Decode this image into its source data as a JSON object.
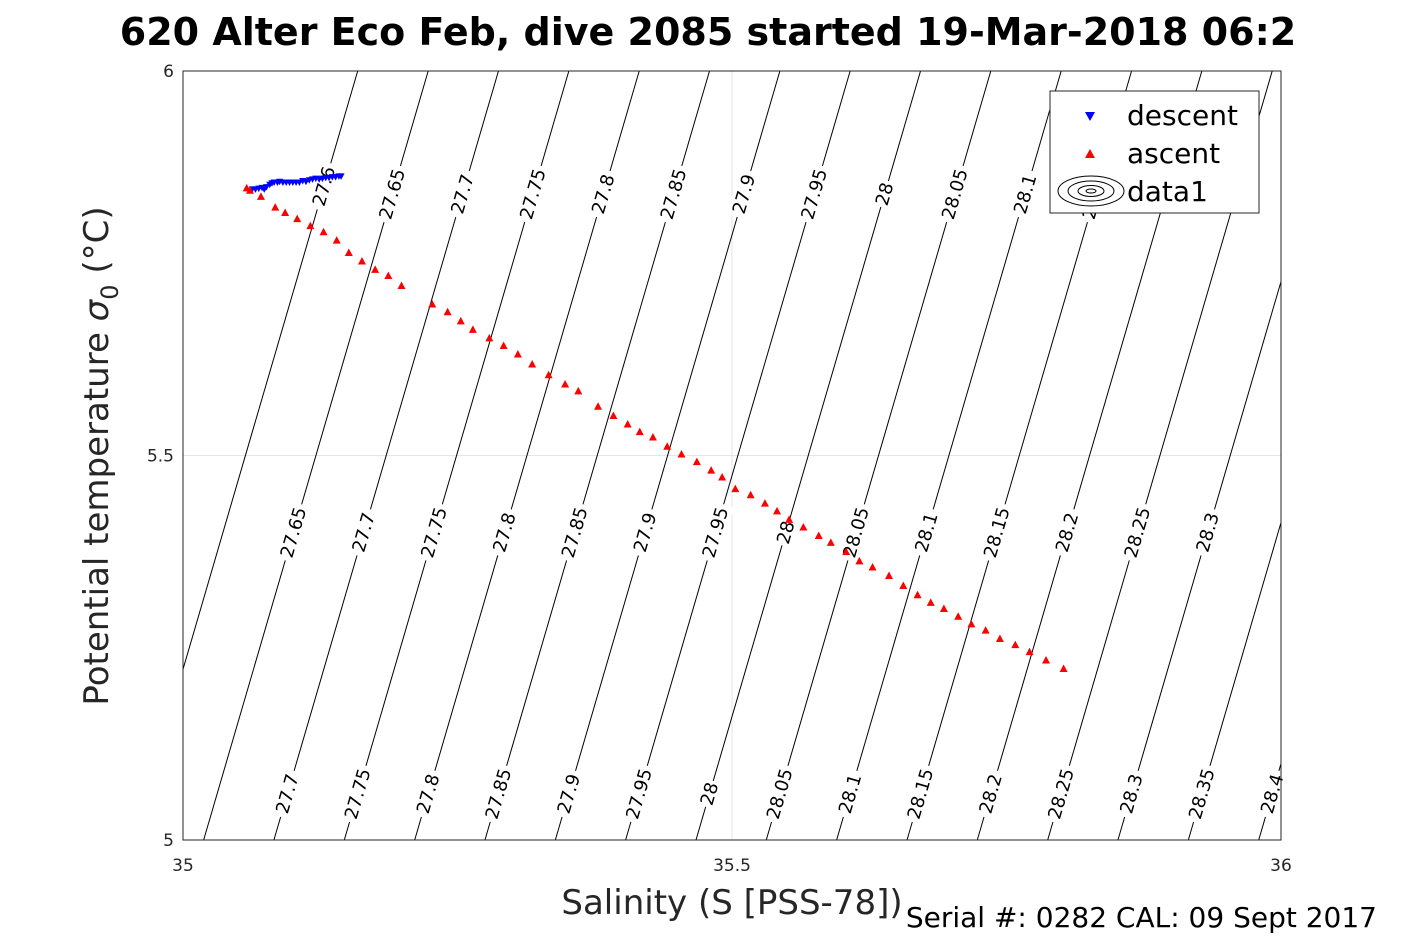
{
  "chart_data": {
    "type": "scatter",
    "title": "620 Alter Eco Feb, dive 2085 started 19-Mar-2018 06:2",
    "xlabel": "Salinity (S [PSS-78])",
    "ylabel_main": "Potential temperature ",
    "ylabel_symbol": "σ",
    "ylabel_sub": "0",
    "ylabel_unit": " (°C)",
    "xlim": [
      35,
      36
    ],
    "ylim": [
      5,
      6
    ],
    "x_ticks": [
      35,
      35.5,
      36
    ],
    "y_ticks": [
      5,
      5.5,
      6
    ],
    "x_tick_labels": [
      "35",
      "35.5",
      "36"
    ],
    "y_tick_labels": [
      "5",
      "5.5",
      "6"
    ],
    "grid": true,
    "legend_position": "top-right",
    "legend": [
      {
        "label": "descent",
        "marker": "triangle-down",
        "color": "#0000ff"
      },
      {
        "label": "ascent",
        "marker": "triangle-up",
        "color": "#ff0000"
      },
      {
        "label": "data1",
        "marker": "contour",
        "color": "#000000"
      }
    ],
    "series": [
      {
        "name": "descent",
        "color": "#0000ff",
        "marker": "triangle-down",
        "points": [
          [
            35.063,
            5.846
          ],
          [
            35.066,
            5.846
          ],
          [
            35.069,
            5.847
          ],
          [
            35.072,
            5.848
          ],
          [
            35.074,
            5.846
          ],
          [
            35.076,
            5.849
          ],
          [
            35.079,
            5.852
          ],
          [
            35.081,
            5.854
          ],
          [
            35.083,
            5.855
          ],
          [
            35.086,
            5.855
          ],
          [
            35.088,
            5.856
          ],
          [
            35.091,
            5.855
          ],
          [
            35.094,
            5.855
          ],
          [
            35.097,
            5.855
          ],
          [
            35.1,
            5.855
          ],
          [
            35.103,
            5.855
          ],
          [
            35.106,
            5.855
          ],
          [
            35.109,
            5.857
          ],
          [
            35.112,
            5.856
          ],
          [
            35.115,
            5.858
          ],
          [
            35.118,
            5.859
          ],
          [
            35.121,
            5.86
          ],
          [
            35.124,
            5.859
          ],
          [
            35.127,
            5.86
          ],
          [
            35.13,
            5.861
          ],
          [
            35.133,
            5.861
          ],
          [
            35.136,
            5.862
          ],
          [
            35.139,
            5.862
          ],
          [
            35.142,
            5.863
          ],
          [
            35.144,
            5.863
          ]
        ]
      },
      {
        "name": "ascent",
        "color": "#ff0000",
        "marker": "triangle-up",
        "points": [
          [
            35.058,
            5.848
          ],
          [
            35.061,
            5.845
          ],
          [
            35.071,
            5.837
          ],
          [
            35.084,
            5.823
          ],
          [
            35.093,
            5.816
          ],
          [
            35.104,
            5.808
          ],
          [
            35.116,
            5.799
          ],
          [
            35.128,
            5.791
          ],
          [
            35.14,
            5.78
          ],
          [
            35.151,
            5.764
          ],
          [
            35.163,
            5.753
          ],
          [
            35.175,
            5.742
          ],
          [
            35.187,
            5.734
          ],
          [
            35.199,
            5.721
          ],
          [
            35.227,
            5.697
          ],
          [
            35.241,
            5.687
          ],
          [
            35.253,
            5.675
          ],
          [
            35.264,
            5.664
          ],
          [
            35.279,
            5.653
          ],
          [
            35.292,
            5.643
          ],
          [
            35.305,
            5.632
          ],
          [
            35.318,
            5.619
          ],
          [
            35.333,
            5.605
          ],
          [
            35.348,
            5.593
          ],
          [
            35.36,
            5.584
          ],
          [
            35.378,
            5.564
          ],
          [
            35.392,
            5.552
          ],
          [
            35.405,
            5.541
          ],
          [
            35.416,
            5.531
          ],
          [
            35.428,
            5.524
          ],
          [
            35.441,
            5.512
          ],
          [
            35.454,
            5.502
          ],
          [
            35.468,
            5.492
          ],
          [
            35.481,
            5.481
          ],
          [
            35.491,
            5.472
          ],
          [
            35.503,
            5.457
          ],
          [
            35.517,
            5.449
          ],
          [
            35.53,
            5.438
          ],
          [
            35.541,
            5.428
          ],
          [
            35.552,
            5.417
          ],
          [
            35.565,
            5.407
          ],
          [
            35.579,
            5.396
          ],
          [
            35.59,
            5.387
          ],
          [
            35.604,
            5.375
          ],
          [
            35.616,
            5.363
          ],
          [
            35.628,
            5.355
          ],
          [
            35.643,
            5.344
          ],
          [
            35.656,
            5.331
          ],
          [
            35.669,
            5.319
          ],
          [
            35.681,
            5.309
          ],
          [
            35.693,
            5.301
          ],
          [
            35.706,
            5.291
          ],
          [
            35.718,
            5.281
          ],
          [
            35.731,
            5.273
          ],
          [
            35.744,
            5.262
          ],
          [
            35.758,
            5.254
          ],
          [
            35.771,
            5.245
          ],
          [
            35.786,
            5.234
          ],
          [
            35.802,
            5.223
          ]
        ]
      }
    ],
    "contours": {
      "name": "data1",
      "levels": [
        "27.6",
        "27.65",
        "27.7",
        "27.75",
        "27.8",
        "27.85",
        "27.9",
        "27.95",
        "28",
        "28.05",
        "28.1",
        "28.15",
        "28.2",
        "28.25",
        "28.3",
        "28.35",
        "28.4"
      ],
      "level_values": [
        27.6,
        27.65,
        27.7,
        27.75,
        27.8,
        27.85,
        27.9,
        27.95,
        28.0,
        28.05,
        28.1,
        28.15,
        28.2,
        28.25,
        28.3,
        28.35,
        28.4
      ],
      "salinity_at_t5": [
        34.9546,
        35.0188,
        35.0828,
        35.1469,
        35.211,
        35.275,
        35.3391,
        35.4031,
        35.4672,
        35.5312,
        35.5953,
        35.6594,
        35.7234,
        35.7875,
        35.8515,
        35.9156,
        35.9797
      ],
      "salinity_per_degC": 0.2045,
      "label_rows": [
        {
          "t": 5.06,
          "from": 27.7,
          "to": 28.4
        },
        {
          "t": 5.4,
          "from": 27.65,
          "to": 28.4
        },
        {
          "t": 5.84,
          "from": 27.65,
          "to": 28.15
        },
        {
          "t": 5.85,
          "from": 27.6,
          "to": 27.6
        }
      ]
    },
    "footer": "Serial #: 0282  CAL: 09 Sept 2017"
  }
}
